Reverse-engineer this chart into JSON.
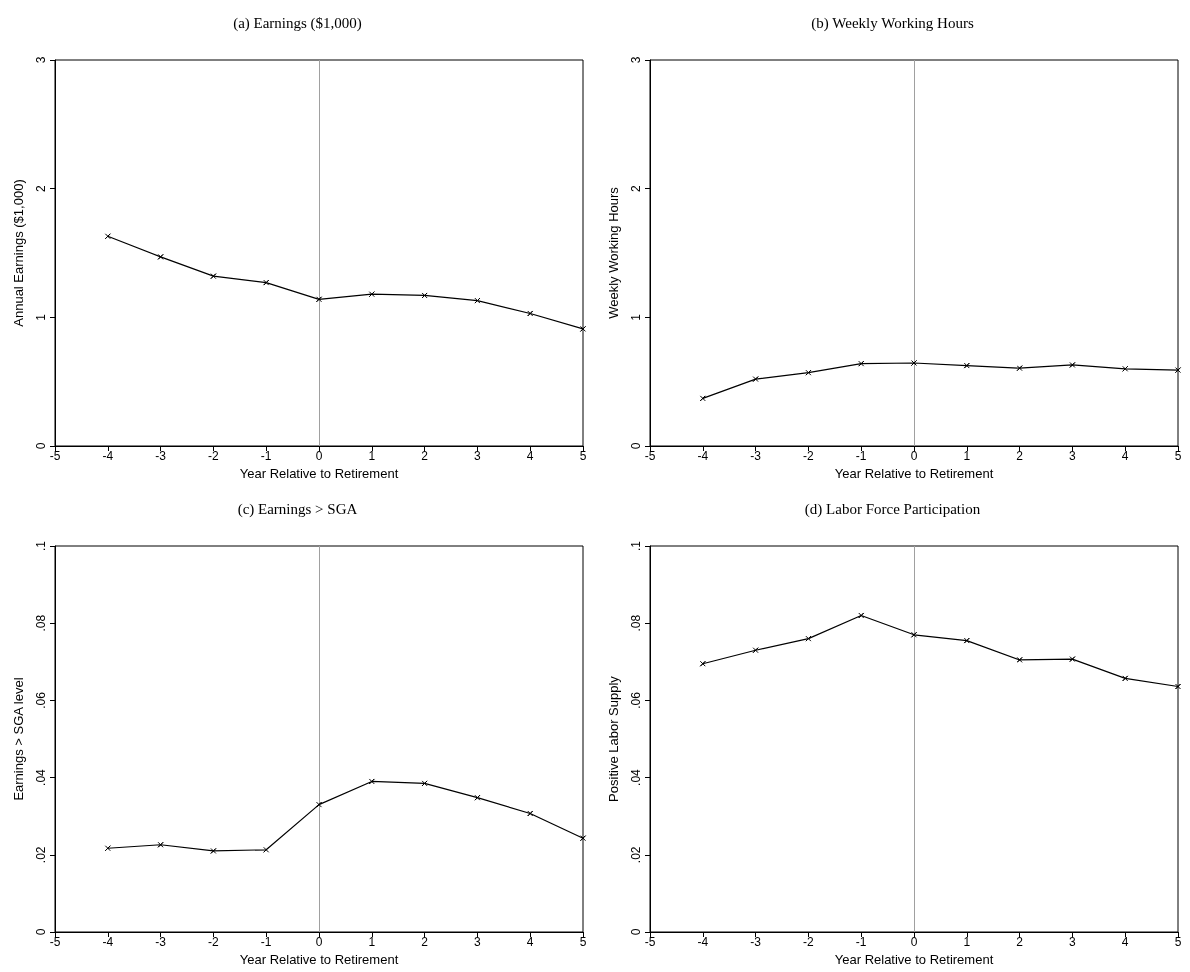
{
  "chart_data": [
    {
      "type": "line",
      "title": "(a) Earnings ($1,000)",
      "xlabel": "Year Relative to Retirement",
      "ylabel": "Annual Earnings ($1,000)",
      "x": [
        -4,
        -3,
        -2,
        -1,
        0,
        1,
        2,
        3,
        4,
        5
      ],
      "series": [
        {
          "color": "#000000",
          "values": [
            1.63,
            1.47,
            1.32,
            1.27,
            1.14,
            1.18,
            1.17,
            1.13,
            1.03,
            0.91
          ]
        }
      ],
      "xlim": [
        -5,
        5
      ],
      "xticks": [
        -5,
        -4,
        -3,
        -2,
        -1,
        0,
        1,
        2,
        3,
        4,
        5
      ],
      "ylim": [
        0,
        3
      ],
      "yticks": [
        0,
        1,
        2,
        3
      ],
      "ref_lines": [
        {
          "axis": "x",
          "value": 0,
          "color": "#a0a0a0"
        }
      ],
      "marker": "cross",
      "grid": false
    },
    {
      "type": "line",
      "title": "(b) Weekly Working Hours",
      "xlabel": "Year Relative to Retirement",
      "ylabel": "Weekly Working Hours",
      "x": [
        -4,
        -3,
        -2,
        -1,
        0,
        1,
        2,
        3,
        4,
        5
      ],
      "series": [
        {
          "color": "#000000",
          "values": [
            0.37,
            0.52,
            0.57,
            0.64,
            0.645,
            0.625,
            0.605,
            0.63,
            0.6,
            0.59
          ]
        }
      ],
      "xlim": [
        -5,
        5
      ],
      "xticks": [
        -5,
        -4,
        -3,
        -2,
        -1,
        0,
        1,
        2,
        3,
        4,
        5
      ],
      "ylim": [
        0,
        3
      ],
      "yticks": [
        0,
        1,
        2,
        3
      ],
      "ref_lines": [
        {
          "axis": "x",
          "value": 0,
          "color": "#a0a0a0"
        }
      ],
      "marker": "cross",
      "grid": false
    },
    {
      "type": "line",
      "title": "(c) Earnings > SGA",
      "xlabel": "Year Relative to Retirement",
      "ylabel": "Earnings > SGA level",
      "x": [
        -4,
        -3,
        -2,
        -1,
        0,
        1,
        2,
        3,
        4,
        5
      ],
      "series": [
        {
          "color": "#000000",
          "values": [
            0.0217,
            0.0226,
            0.021,
            0.0213,
            0.033,
            0.039,
            0.0385,
            0.0348,
            0.0307,
            0.0243
          ]
        }
      ],
      "xlim": [
        -5,
        5
      ],
      "xticks": [
        -5,
        -4,
        -3,
        -2,
        -1,
        0,
        1,
        2,
        3,
        4,
        5
      ],
      "ylim": [
        0,
        0.1
      ],
      "yticks": [
        0,
        {
          "value": 0.02,
          "label": ".02"
        },
        {
          "value": 0.04,
          "label": ".04"
        },
        {
          "value": 0.06,
          "label": ".06"
        },
        {
          "value": 0.08,
          "label": ".08"
        },
        {
          "value": 0.1,
          "label": ".1"
        }
      ],
      "ref_lines": [
        {
          "axis": "x",
          "value": 0,
          "color": "#a0a0a0"
        }
      ],
      "marker": "cross",
      "grid": false
    },
    {
      "type": "line",
      "title": "(d) Labor Force Participation",
      "xlabel": "Year Relative to Retirement",
      "ylabel": "Positive Labor Supply",
      "x": [
        -4,
        -3,
        -2,
        -1,
        0,
        1,
        2,
        3,
        4,
        5
      ],
      "series": [
        {
          "color": "#000000",
          "values": [
            0.0695,
            0.073,
            0.076,
            0.082,
            0.077,
            0.0755,
            0.0705,
            0.0707,
            0.0657,
            0.0636
          ]
        }
      ],
      "xlim": [
        -5,
        5
      ],
      "xticks": [
        -5,
        -4,
        -3,
        -2,
        -1,
        0,
        1,
        2,
        3,
        4,
        5
      ],
      "ylim": [
        0,
        0.1
      ],
      "yticks": [
        0,
        {
          "value": 0.02,
          "label": ".02"
        },
        {
          "value": 0.04,
          "label": ".04"
        },
        {
          "value": 0.06,
          "label": ".06"
        },
        {
          "value": 0.08,
          "label": ".08"
        },
        {
          "value": 0.1,
          "label": ".1"
        }
      ],
      "ref_lines": [
        {
          "axis": "x",
          "value": 0,
          "color": "#a0a0a0"
        }
      ],
      "marker": "cross",
      "grid": false
    }
  ]
}
